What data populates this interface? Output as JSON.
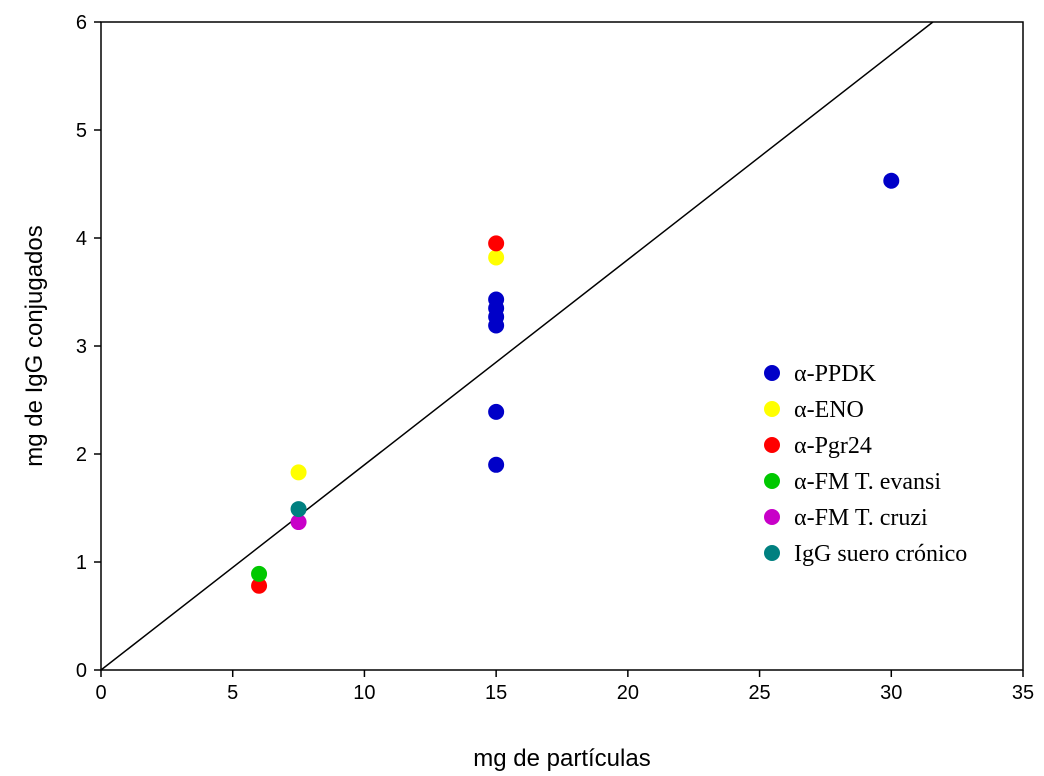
{
  "chart_data": {
    "type": "scatter",
    "title": "",
    "xlabel": "mg de partículas",
    "ylabel": "mg de IgG conjugados",
    "xlim": [
      0,
      35
    ],
    "ylim": [
      0,
      6
    ],
    "x_ticks": [
      "0",
      "5",
      "10",
      "15",
      "20",
      "25",
      "30",
      "35"
    ],
    "y_ticks": [
      "0",
      "1",
      "2",
      "3",
      "4",
      "5",
      "6"
    ],
    "grid": false,
    "legend_position": "right",
    "series": [
      {
        "name": "α-PPDK",
        "color": "#0000c8",
        "points": [
          [
            15,
            3.43
          ],
          [
            15,
            3.35
          ],
          [
            15,
            3.27
          ],
          [
            15,
            3.19
          ],
          [
            15,
            2.39
          ],
          [
            15,
            1.9
          ],
          [
            30,
            4.53
          ]
        ]
      },
      {
        "name": "α-ENO",
        "color": "#ffff00",
        "points": [
          [
            15,
            3.82
          ],
          [
            7.5,
            1.83
          ]
        ]
      },
      {
        "name": "α-Pgr24",
        "color": "#ff0000",
        "points": [
          [
            15,
            3.95
          ],
          [
            6,
            0.78
          ]
        ]
      },
      {
        "name": "α-FM T. evansi",
        "color": "#00c800",
        "points": [
          [
            6,
            0.89
          ]
        ]
      },
      {
        "name": "α-FM T. cruzi",
        "color": "#c800c8",
        "points": [
          [
            7.5,
            1.37
          ]
        ]
      },
      {
        "name": "IgG suero crónico",
        "color": "#008080",
        "points": [
          [
            7.5,
            1.49
          ]
        ]
      }
    ],
    "reference_line": {
      "slope": 0.19,
      "intercept": 0,
      "color": "#000000"
    }
  }
}
